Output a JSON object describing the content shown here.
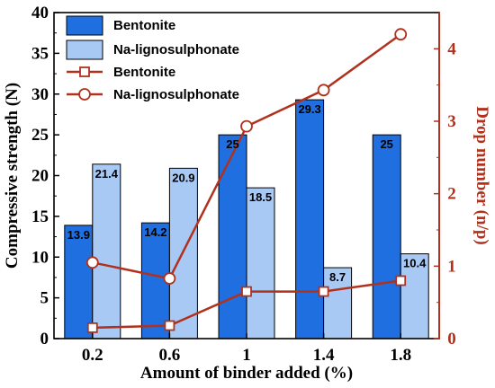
{
  "chart_data": {
    "type": "bar",
    "xlabel": "Amount of binder added (%)",
    "ylabel": "Compressive strength (N)",
    "y2label": "Drop number (n/p)",
    "categories": [
      "0.2",
      "0.6",
      "1",
      "1.4",
      "1.8"
    ],
    "ylim": [
      0,
      40
    ],
    "y2lim": [
      0,
      4.5
    ],
    "yticks": [
      "0",
      "5",
      "10",
      "15",
      "20",
      "25",
      "30",
      "35",
      "40"
    ],
    "y2ticks": [
      "0",
      "1",
      "2",
      "3",
      "4"
    ],
    "bar_series": [
      {
        "name": "Bentonite",
        "values": [
          13.9,
          14.2,
          25,
          29.3,
          25
        ],
        "labels": [
          "13.9",
          "14.2",
          "25",
          "29.3",
          "25"
        ],
        "color": "#1f6fe0"
      },
      {
        "name": "Na-lignosulphonate",
        "values": [
          21.4,
          20.9,
          18.5,
          8.7,
          10.4
        ],
        "labels": [
          "21.4",
          "20.9",
          "18.5",
          "8.7",
          "10.4"
        ],
        "color": "#a9c9f5"
      }
    ],
    "line_series": [
      {
        "name": "Bentonite",
        "marker": "square",
        "values": [
          0.15,
          0.18,
          0.65,
          0.65,
          0.8
        ],
        "color": "#b0321e"
      },
      {
        "name": "Na-lignosulphonate",
        "marker": "circle",
        "values": [
          1.05,
          0.83,
          2.93,
          3.43,
          4.2
        ],
        "color": "#b0321e"
      }
    ],
    "right_axis_color": "#b0321e",
    "legend": "top-left"
  }
}
